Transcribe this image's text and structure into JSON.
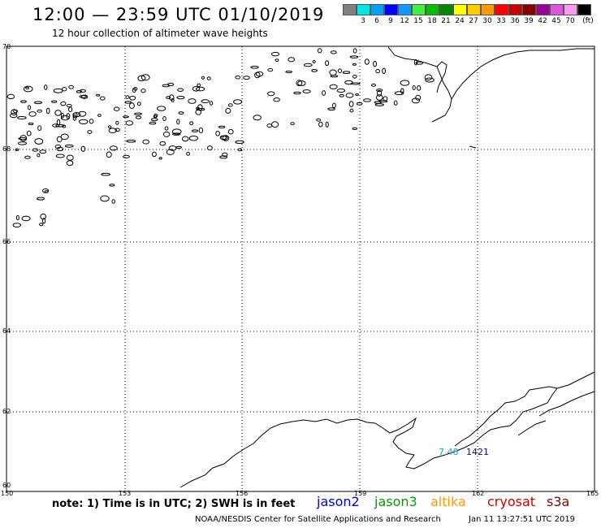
{
  "header": {
    "title": "12:00 — 23:59 UTC 01/10/2019",
    "subtitle": "12 hour collection of altimeter wave heights"
  },
  "color_scale": {
    "unit": "(ft)",
    "items": [
      {
        "label": "",
        "color": "#808080"
      },
      {
        "label": "3",
        "color": "#00e5e5"
      },
      {
        "label": "6",
        "color": "#00a0ff"
      },
      {
        "label": "9",
        "color": "#0000ff"
      },
      {
        "label": "12",
        "color": "#0a9cff"
      },
      {
        "label": "15",
        "color": "#44ee44"
      },
      {
        "label": "18",
        "color": "#00c000"
      },
      {
        "label": "21",
        "color": "#008800"
      },
      {
        "label": "24",
        "color": "#ffff00"
      },
      {
        "label": "27",
        "color": "#ffcc00"
      },
      {
        "label": "30",
        "color": "#ff9900"
      },
      {
        "label": "33",
        "color": "#ff0000"
      },
      {
        "label": "36",
        "color": "#cc0000"
      },
      {
        "label": "39",
        "color": "#880000"
      },
      {
        "label": "42",
        "color": "#990099"
      },
      {
        "label": "45",
        "color": "#dd55dd"
      },
      {
        "label": "70",
        "color": "#ff99ee"
      },
      {
        "label": "",
        "color": "#000000"
      }
    ]
  },
  "map": {
    "lat_labels": [
      "70",
      "68",
      "66",
      "64",
      "62",
      "60"
    ],
    "lon_labels": [
      "150",
      "153",
      "156",
      "159",
      "162",
      "165"
    ],
    "observations": [
      {
        "value": "7.48",
        "color": "#1aa0e0"
      },
      {
        "value": "1421",
        "color": "#0000cc"
      }
    ]
  },
  "note": "note: 1) Time is in UTC; 2) SWH is in feet",
  "satellites": [
    {
      "name": "jason2",
      "color": "#0000cc"
    },
    {
      "name": "jason3",
      "color": "#00a000"
    },
    {
      "name": "altika",
      "color": "#ff9900"
    },
    {
      "name": "cryosat",
      "color": "#cc0000"
    },
    {
      "name": "s3a",
      "color": "#880000"
    }
  ],
  "footer": {
    "credit": "NOAA/NESDIS Center for Satellite Applications and Research",
    "timestamp": "Jan 11 13:27:51 UTC 2019"
  }
}
